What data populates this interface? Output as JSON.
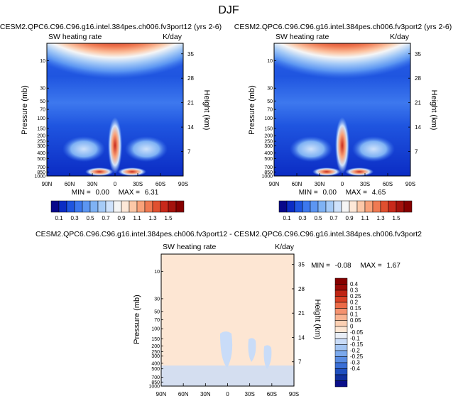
{
  "figure": {
    "title": "DJF"
  },
  "colors": {
    "heating_scale": [
      "#08088a",
      "#0b2cc4",
      "#1f55e0",
      "#3d78ee",
      "#5c96f2",
      "#7fb2f4",
      "#a6cbf7",
      "#cfe2fb",
      "#f5f5f5",
      "#fde8d8",
      "#fcc8a8",
      "#f9a27a",
      "#f07a52",
      "#e0502f",
      "#c8291a",
      "#a4120c",
      "#860000"
    ],
    "diff_scale": [
      "#0a0f8a",
      "#10309e",
      "#1f4fbf",
      "#3a6fd6",
      "#5a8de3",
      "#7ba9ec",
      "#a3c5f3",
      "#c9dcf8",
      "#e9eef7",
      "#fde6d3",
      "#fcd0b3",
      "#f9b391",
      "#f5926f",
      "#ec6b48",
      "#da4226",
      "#bf2413",
      "#9a0a07",
      "#850000"
    ]
  },
  "chart_data": [
    {
      "type": "heatmap",
      "title": "CESM2.QPC6.C96.C96.g16.intel.384pes.ch006.fv3port12 (yrs 2-6)",
      "subtitle_left": "SW heating rate",
      "subtitle_right": "K/day",
      "ylabel": "Pressure (mb)",
      "y2label": "Height (km)",
      "x_ticks": [
        "90N",
        "60N",
        "30N",
        "0",
        "30S",
        "60S",
        "90S"
      ],
      "y_ticks": [
        "10",
        "30",
        "50",
        "70",
        "100",
        "150",
        "200",
        "250",
        "300",
        "400",
        "500",
        "700",
        "850",
        "1000"
      ],
      "y2_ticks": [
        "35",
        "28",
        "21",
        "14",
        "7"
      ],
      "min_label": "MIN =",
      "min_value": "0.00",
      "max_label": "MAX =",
      "max_value": "6.31",
      "colorbar_levels": [
        "0.1",
        "0.3",
        "0.5",
        "0.7",
        "0.9",
        "1.1",
        "1.3",
        "1.5"
      ]
    },
    {
      "type": "heatmap",
      "title": "CESM2.QPC6.C96.C96.g16.intel.384pes.ch006.fv3port2 (yrs 2-6)",
      "subtitle_left": "SW heating rate",
      "subtitle_right": "K/day",
      "ylabel": "Pressure (mb)",
      "y2label": "Height (km)",
      "x_ticks": [
        "90N",
        "60N",
        "30N",
        "0",
        "30S",
        "60S",
        "90S"
      ],
      "y_ticks": [
        "10",
        "30",
        "50",
        "70",
        "100",
        "150",
        "200",
        "250",
        "300",
        "400",
        "500",
        "700",
        "850",
        "1000"
      ],
      "y2_ticks": [
        "35",
        "28",
        "21",
        "14",
        "7"
      ],
      "min_label": "MIN =",
      "min_value": "0.00",
      "max_label": "MAX =",
      "max_value": "4.65",
      "colorbar_levels": [
        "0.1",
        "0.3",
        "0.5",
        "0.7",
        "0.9",
        "1.1",
        "1.3",
        "1.5"
      ]
    },
    {
      "type": "heatmap",
      "title": "CESM2.QPC6.C96.C96.g16.intel.384pes.ch006.fv3port12 - CESM2.QPC6.C96.C96.g16.intel.384pes.ch006.fv3port2",
      "subtitle_left": "SW heating rate",
      "subtitle_right": "K/day",
      "ylabel": "Pressure (mb)",
      "y2label": "Height (km)",
      "x_ticks": [
        "90N",
        "60N",
        "30N",
        "0",
        "30S",
        "60S",
        "90S"
      ],
      "y_ticks": [
        "10",
        "30",
        "50",
        "70",
        "100",
        "150",
        "200",
        "250",
        "300",
        "400",
        "500",
        "700",
        "850",
        "1000"
      ],
      "y2_ticks": [
        "35",
        "28",
        "21",
        "14",
        "7"
      ],
      "min_label": "MIN =",
      "min_value": "-0.08",
      "max_label": "MAX =",
      "max_value": "1.67",
      "colorbar_levels": [
        "0.4",
        "0.3",
        "0.25",
        "0.2",
        "0.15",
        "0.1",
        "0.05",
        "0",
        "-0.05",
        "-0.1",
        "-0.15",
        "-0.2",
        "-0.25",
        "-0.3",
        "-0.4"
      ]
    }
  ]
}
